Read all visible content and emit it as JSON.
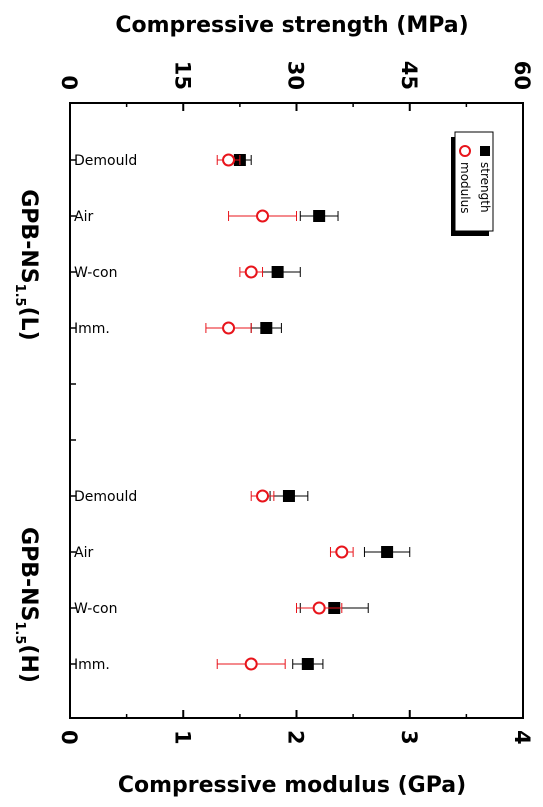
{
  "chart_data": {
    "type": "scatter",
    "title": "",
    "xlabel_bottom": "Compressive modulus (GPa)",
    "xlabel_top": "Compressive strength (MPa)",
    "bottom_axis": {
      "min": 0,
      "max": 4,
      "ticks": [
        "0",
        "1",
        "2",
        "3",
        "4"
      ]
    },
    "top_axis": {
      "min": 0,
      "max": 60,
      "ticks": [
        "0",
        "15",
        "30",
        "45",
        "60"
      ]
    },
    "groups": [
      {
        "label": "GPB-NS",
        "subscript": "1.5",
        "suffix": "(L)"
      },
      {
        "label": "GPB-NS",
        "subscript": "1.5",
        "suffix": "(H)"
      }
    ],
    "categories": [
      "Demould",
      "Air",
      "W-con",
      "Imm.",
      "Demould",
      "Air",
      "W-con",
      "Imm."
    ],
    "series": [
      {
        "name": "strength",
        "axis": "top",
        "color": "#000000",
        "marker": "filled-square",
        "values": [
          22.5,
          33.0,
          27.5,
          26.0,
          29.0,
          42.0,
          35.0,
          31.5
        ],
        "errors": [
          1.5,
          2.5,
          3.0,
          2.0,
          2.5,
          3.0,
          4.5,
          2.0
        ]
      },
      {
        "name": "modulus",
        "axis": "bottom",
        "color": "#e8141b",
        "marker": "open-circle",
        "values": [
          1.4,
          1.7,
          1.6,
          1.4,
          1.7,
          2.4,
          2.2,
          1.6
        ],
        "errors": [
          0.1,
          0.3,
          0.1,
          0.2,
          0.1,
          0.1,
          0.2,
          0.3
        ]
      }
    ],
    "legend": {
      "position": "top-right",
      "entries": [
        "strength",
        "modulus"
      ]
    },
    "grid": false
  }
}
